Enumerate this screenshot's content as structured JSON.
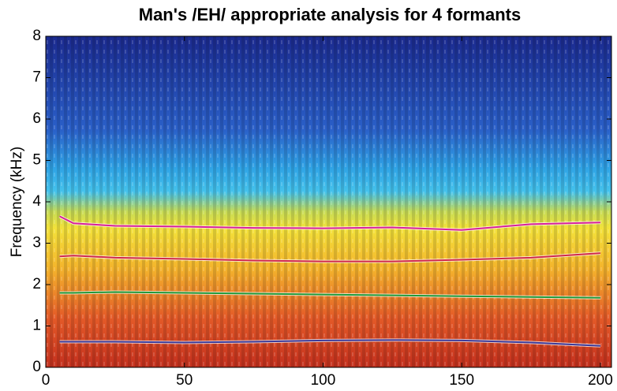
{
  "chart_data": {
    "type": "line",
    "title": "Man's /EH/ appropriate analysis for 4 formants",
    "y_label": "Frequency (kHz)",
    "x": [
      5,
      10,
      25,
      50,
      75,
      100,
      125,
      150,
      175,
      200
    ],
    "series": [
      {
        "color": "#3a3a9a",
        "values": [
          0.62,
          0.62,
          0.62,
          0.6,
          0.62,
          0.65,
          0.66,
          0.65,
          0.6,
          0.52
        ]
      },
      {
        "color": "#1f9a3a",
        "values": [
          1.8,
          1.8,
          1.82,
          1.8,
          1.78,
          1.76,
          1.74,
          1.72,
          1.7,
          1.68
        ]
      },
      {
        "color": "#d0284a",
        "values": [
          2.68,
          2.7,
          2.65,
          2.62,
          2.58,
          2.56,
          2.56,
          2.6,
          2.65,
          2.76
        ]
      },
      {
        "color": "#d8209a",
        "values": [
          3.65,
          3.48,
          3.42,
          3.4,
          3.37,
          3.36,
          3.38,
          3.32,
          3.46,
          3.5
        ]
      }
    ],
    "xlim": [
      0,
      204
    ],
    "ylim": [
      0,
      8
    ],
    "xticks": [
      0,
      50,
      100,
      150,
      200
    ],
    "yticks": [
      0,
      1,
      2,
      3,
      4,
      5,
      6,
      7,
      8
    ]
  }
}
